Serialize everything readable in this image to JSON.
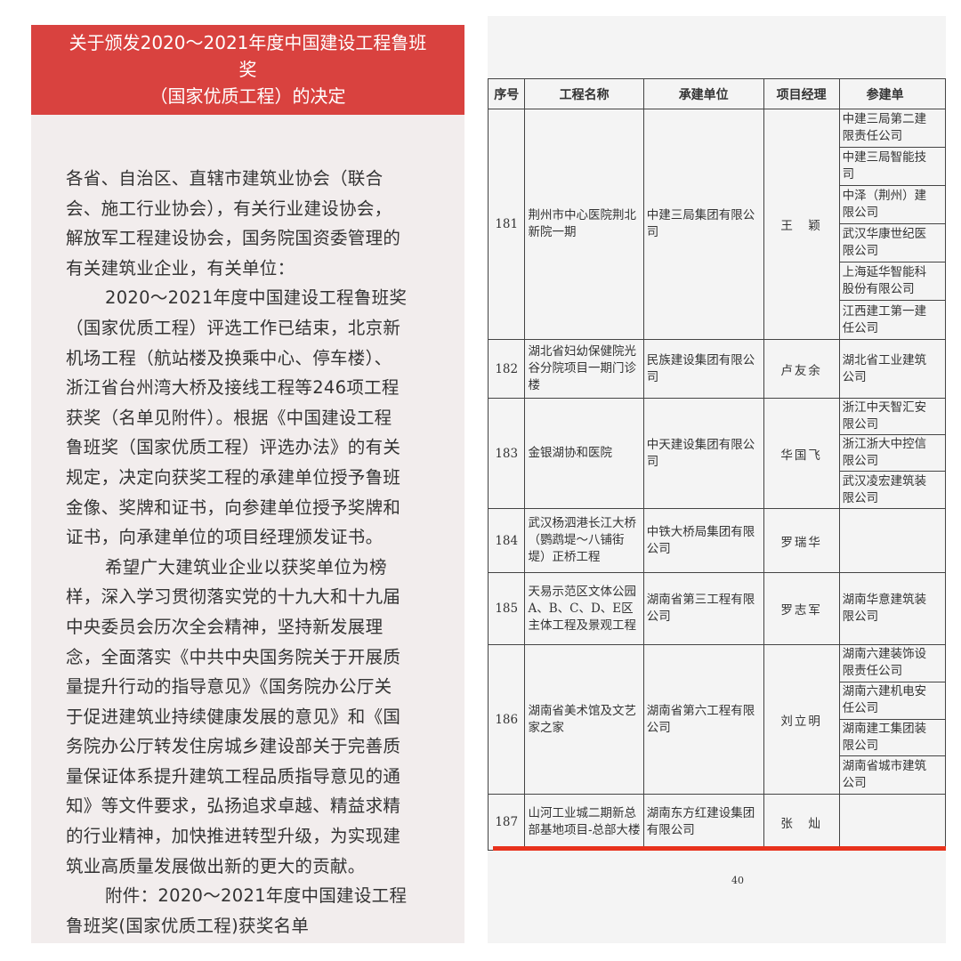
{
  "notice": {
    "title_lines": [
      "关于颁发2020～2021年度中国建设工程鲁班",
      "奖",
      "（国家优质工程）的决定"
    ],
    "header_color": "#d9423f",
    "paragraphs": [
      {
        "indent": false,
        "lines": [
          "各省、自治区、直辖市建筑业协会（联合",
          "会、施工行业协会），有关行业建设协会，",
          "解放军工程建设协会，国务院国资委管理的",
          "有关建筑业企业，有关单位："
        ]
      },
      {
        "indent": true,
        "lines": [
          "2020～2021年度中国建设工程鲁班奖",
          "（国家优质工程）评选工作已结束，北京新",
          "机场工程（航站楼及换乘中心、停车楼）、",
          "浙江省台州湾大桥及接线工程等246项工程",
          "获奖（名单见附件）。根据《中国建设工程",
          "鲁班奖（国家优质工程）评选办法》的有关",
          "规定，决定向获奖工程的承建单位授予鲁班",
          "金像、奖牌和证书，向参建单位授予奖牌和",
          "证书，向承建单位的项目经理颁发证书。"
        ]
      },
      {
        "indent": true,
        "lines": [
          "希望广大建筑业企业以获奖单位为榜",
          "样，深入学习贯彻落实党的十九大和十九届",
          "中央委员会历次全会精神，坚持新发展理",
          "念，全面落实《中共中央国务院关于开展质",
          "量提升行动的指导意见》《国务院办公厅关",
          "于促进建筑业持续健康发展的意见》和《国",
          "务院办公厅转发住房城乡建设部关于完善质",
          "量保证体系提升建筑工程品质指导意见的通",
          "知》等文件要求，弘扬追求卓越、精益求精",
          "的行业精神，加快推进转型升级，为实现建",
          "筑业高质量发展做出新的更大的贡献。"
        ]
      },
      {
        "indent": true,
        "lines": [
          "附件：2020～2021年度中国建设工程",
          "鲁班奖(国家优质工程)获奖名单"
        ]
      }
    ]
  },
  "table": {
    "headers": [
      "序号",
      "工程名称",
      "承建单位",
      "项目经理",
      "参建单"
    ],
    "rows": [
      {
        "num": "181",
        "name": "荆州市中心医院荆北新院一期",
        "contractor": "中建三局集团有限公司",
        "manager": "王　颖",
        "participants": [
          [
            "中建三局第二建",
            "限责任公司"
          ],
          [
            "中建三局智能技",
            "司"
          ],
          [
            "中泽（荆州）建",
            "限公司"
          ],
          [
            "武汉华康世纪医",
            "限公司"
          ],
          [
            "上海延华智能科",
            "股份有限公司"
          ],
          [
            "江西建工第一建",
            "任公司"
          ]
        ]
      },
      {
        "num": "182",
        "name": "湖北省妇幼保健院光谷分院项目一期门诊楼",
        "contractor": "民族建设集团有限公司",
        "manager": "卢友余",
        "participants": [
          [
            "湖北省工业建筑",
            "公司"
          ]
        ]
      },
      {
        "num": "183",
        "name": "金银湖协和医院",
        "contractor": "中天建设集团有限公司",
        "manager": "华国飞",
        "participants": [
          [
            "浙江中天智汇安",
            "限公司"
          ],
          [
            "浙江浙大中控信",
            "限公司"
          ],
          [
            "武汉凌宏建筑装",
            "限公司"
          ]
        ]
      },
      {
        "num": "184",
        "name": "武汉杨泗港长江大桥（鹦鹉堤～八铺街堤）正桥工程",
        "contractor": "中铁大桥局集团有限公司",
        "manager": "罗瑞华",
        "participants": []
      },
      {
        "num": "185",
        "name": "天易示范区文体公园A、B、C、D、E区主体工程及景观工程",
        "contractor": "湖南省第三工程有限公司",
        "manager": "罗志军",
        "participants": [
          [
            "湖南华意建筑装",
            "限公司"
          ]
        ]
      },
      {
        "num": "186",
        "name": "湖南省美术馆及文艺家之家",
        "contractor": "湖南省第六工程有限公司",
        "manager": "刘立明",
        "participants": [
          [
            "湖南六建装饰设",
            "限责任公司"
          ],
          [
            "湖南六建机电安",
            "任公司"
          ],
          [
            "湖南建工集团装",
            "限公司"
          ],
          [
            "湖南省城市建筑",
            "公司"
          ]
        ]
      },
      {
        "num": "187",
        "name": "山河工业城二期新总部基地项目-总部大楼",
        "contractor": "湖南东方红建设集团有限公司",
        "manager": "张　灿",
        "participants": []
      }
    ],
    "page_number": "40",
    "accent_line_color": "#e8321c"
  }
}
